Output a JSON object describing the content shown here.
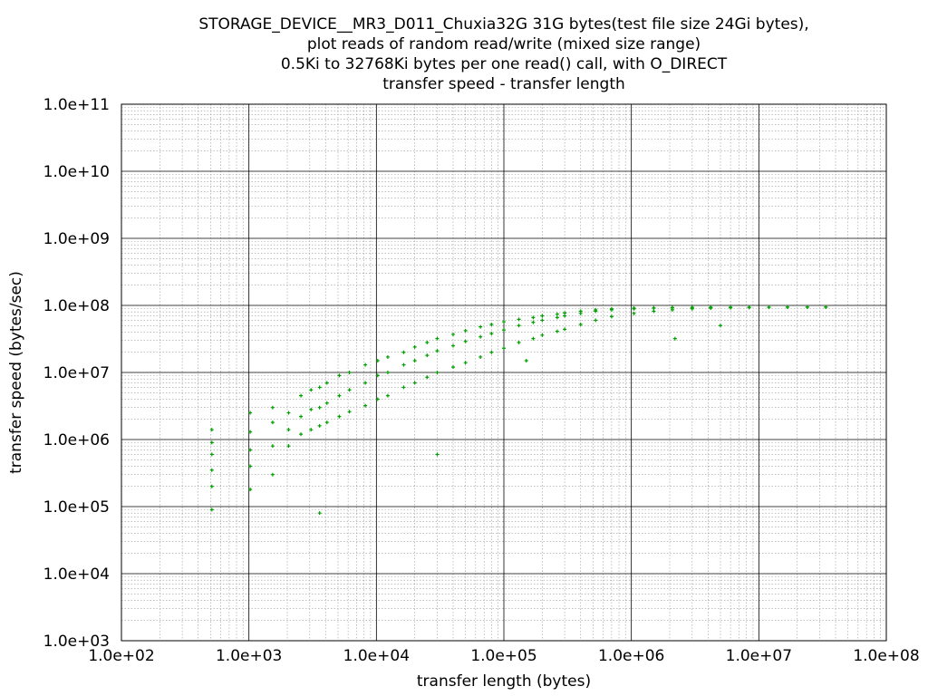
{
  "title_lines": [
    "STORAGE_DEVICE__MR3_D011_Chuxia32G 31G bytes(test file size 24Gi bytes),",
    "plot reads of random read/write (mixed size range)",
    "0.5Ki to 32768Ki bytes per one read() call, with O_DIRECT",
    "transfer speed - transfer length"
  ],
  "chart_data": {
    "type": "scatter",
    "title": "STORAGE_DEVICE__MR3_D011_Chuxia32G 31G bytes(test file size 24Gi bytes), plot reads of random read/write (mixed size range) 0.5Ki to 32768Ki bytes per one read() call, with O_DIRECT transfer speed - transfer length",
    "xlabel": "transfer length (bytes)",
    "ylabel": "transfer speed (bytes/sec)",
    "x_scale": "log",
    "y_scale": "log",
    "xlim": [
      100,
      100000000
    ],
    "ylim": [
      1000,
      100000000000
    ],
    "x_ticks": [
      "1.0e+02",
      "1.0e+03",
      "1.0e+04",
      "1.0e+05",
      "1.0e+06",
      "1.0e+07",
      "1.0e+08"
    ],
    "y_ticks": [
      "1.0e+03",
      "1.0e+04",
      "1.0e+05",
      "1.0e+06",
      "1.0e+07",
      "1.0e+08",
      "1.0e+09",
      "1.0e+10",
      "1.0e+11"
    ],
    "grid": true,
    "marker_color": "#00a000",
    "series": [
      {
        "points": [
          [
            512,
            90000
          ],
          [
            512,
            200000
          ],
          [
            512,
            350000
          ],
          [
            512,
            600000
          ],
          [
            512,
            900000
          ],
          [
            512,
            1400000
          ],
          [
            1024,
            180000
          ],
          [
            1024,
            400000
          ],
          [
            1024,
            700000
          ],
          [
            1024,
            1300000
          ],
          [
            1024,
            2500000
          ],
          [
            1536,
            300000
          ],
          [
            1536,
            800000
          ],
          [
            1536,
            1800000
          ],
          [
            1536,
            3000000
          ],
          [
            2048,
            800000
          ],
          [
            2048,
            1400000
          ],
          [
            2048,
            2500000
          ],
          [
            2560,
            1200000
          ],
          [
            2560,
            2200000
          ],
          [
            2560,
            4500000
          ],
          [
            3072,
            1400000
          ],
          [
            3072,
            2800000
          ],
          [
            3072,
            5500000
          ],
          [
            3584,
            1600000
          ],
          [
            3584,
            3000000
          ],
          [
            3584,
            6000000
          ],
          [
            3584,
            80000
          ],
          [
            4096,
            1800000
          ],
          [
            4096,
            3500000
          ],
          [
            4096,
            7000000
          ],
          [
            5120,
            2200000
          ],
          [
            5120,
            4500000
          ],
          [
            5120,
            9000000
          ],
          [
            6144,
            2600000
          ],
          [
            6144,
            5500000
          ],
          [
            6144,
            10000000
          ],
          [
            8192,
            3200000
          ],
          [
            8192,
            7000000
          ],
          [
            8192,
            13000000
          ],
          [
            10240,
            4000000
          ],
          [
            10240,
            9000000
          ],
          [
            10240,
            15000000
          ],
          [
            12288,
            4500000
          ],
          [
            12288,
            10000000
          ],
          [
            12288,
            17000000
          ],
          [
            16384,
            6000000
          ],
          [
            16384,
            13000000
          ],
          [
            16384,
            20000000
          ],
          [
            20000,
            7000000
          ],
          [
            20000,
            15000000
          ],
          [
            20000,
            24000000
          ],
          [
            25000,
            8500000
          ],
          [
            25000,
            18000000
          ],
          [
            25000,
            28000000
          ],
          [
            30000,
            600000
          ],
          [
            30000,
            10000000
          ],
          [
            30000,
            21000000
          ],
          [
            30000,
            32000000
          ],
          [
            40000,
            12000000
          ],
          [
            40000,
            25000000
          ],
          [
            40000,
            37000000
          ],
          [
            50000,
            14000000
          ],
          [
            50000,
            29000000
          ],
          [
            50000,
            42000000
          ],
          [
            65536,
            17000000
          ],
          [
            65536,
            34000000
          ],
          [
            65536,
            48000000
          ],
          [
            80000,
            20000000
          ],
          [
            80000,
            38000000
          ],
          [
            80000,
            52000000
          ],
          [
            100000,
            23000000
          ],
          [
            100000,
            43000000
          ],
          [
            100000,
            57000000
          ],
          [
            131072,
            28000000
          ],
          [
            131072,
            50000000
          ],
          [
            131072,
            62000000
          ],
          [
            150000,
            15000000
          ],
          [
            170000,
            32000000
          ],
          [
            170000,
            56000000
          ],
          [
            170000,
            66000000
          ],
          [
            200000,
            36000000
          ],
          [
            200000,
            60000000
          ],
          [
            200000,
            70000000
          ],
          [
            262144,
            41000000
          ],
          [
            262144,
            66000000
          ],
          [
            262144,
            74000000
          ],
          [
            300000,
            44000000
          ],
          [
            300000,
            70000000
          ],
          [
            300000,
            77000000
          ],
          [
            400000,
            52000000
          ],
          [
            400000,
            76000000
          ],
          [
            400000,
            82000000
          ],
          [
            524288,
            60000000
          ],
          [
            524288,
            82000000
          ],
          [
            524288,
            86000000
          ],
          [
            700000,
            68000000
          ],
          [
            700000,
            86000000
          ],
          [
            700000,
            89000000
          ],
          [
            1048576,
            76000000
          ],
          [
            1048576,
            89000000
          ],
          [
            1048576,
            91000000
          ],
          [
            1500000,
            82000000
          ],
          [
            1500000,
            91000000
          ],
          [
            1500000,
            92000000
          ],
          [
            2097152,
            86000000
          ],
          [
            2097152,
            92000000
          ],
          [
            2097152,
            93000000
          ],
          [
            2200000,
            32000000
          ],
          [
            3000000,
            89000000
          ],
          [
            3000000,
            93000000
          ],
          [
            3000000,
            93500000
          ],
          [
            4194304,
            91000000
          ],
          [
            4194304,
            93500000
          ],
          [
            4194304,
            94000000
          ],
          [
            5000000,
            50000000
          ],
          [
            6000000,
            92000000
          ],
          [
            6000000,
            94000000
          ],
          [
            8388608,
            93000000
          ],
          [
            8388608,
            94000000
          ],
          [
            12000000,
            93500000
          ],
          [
            12000000,
            94000000
          ],
          [
            16777216,
            94000000
          ],
          [
            16777216,
            94500000
          ],
          [
            24000000,
            94000000
          ],
          [
            24000000,
            94500000
          ],
          [
            33554432,
            94000000
          ],
          [
            33554432,
            94500000
          ]
        ]
      }
    ]
  }
}
